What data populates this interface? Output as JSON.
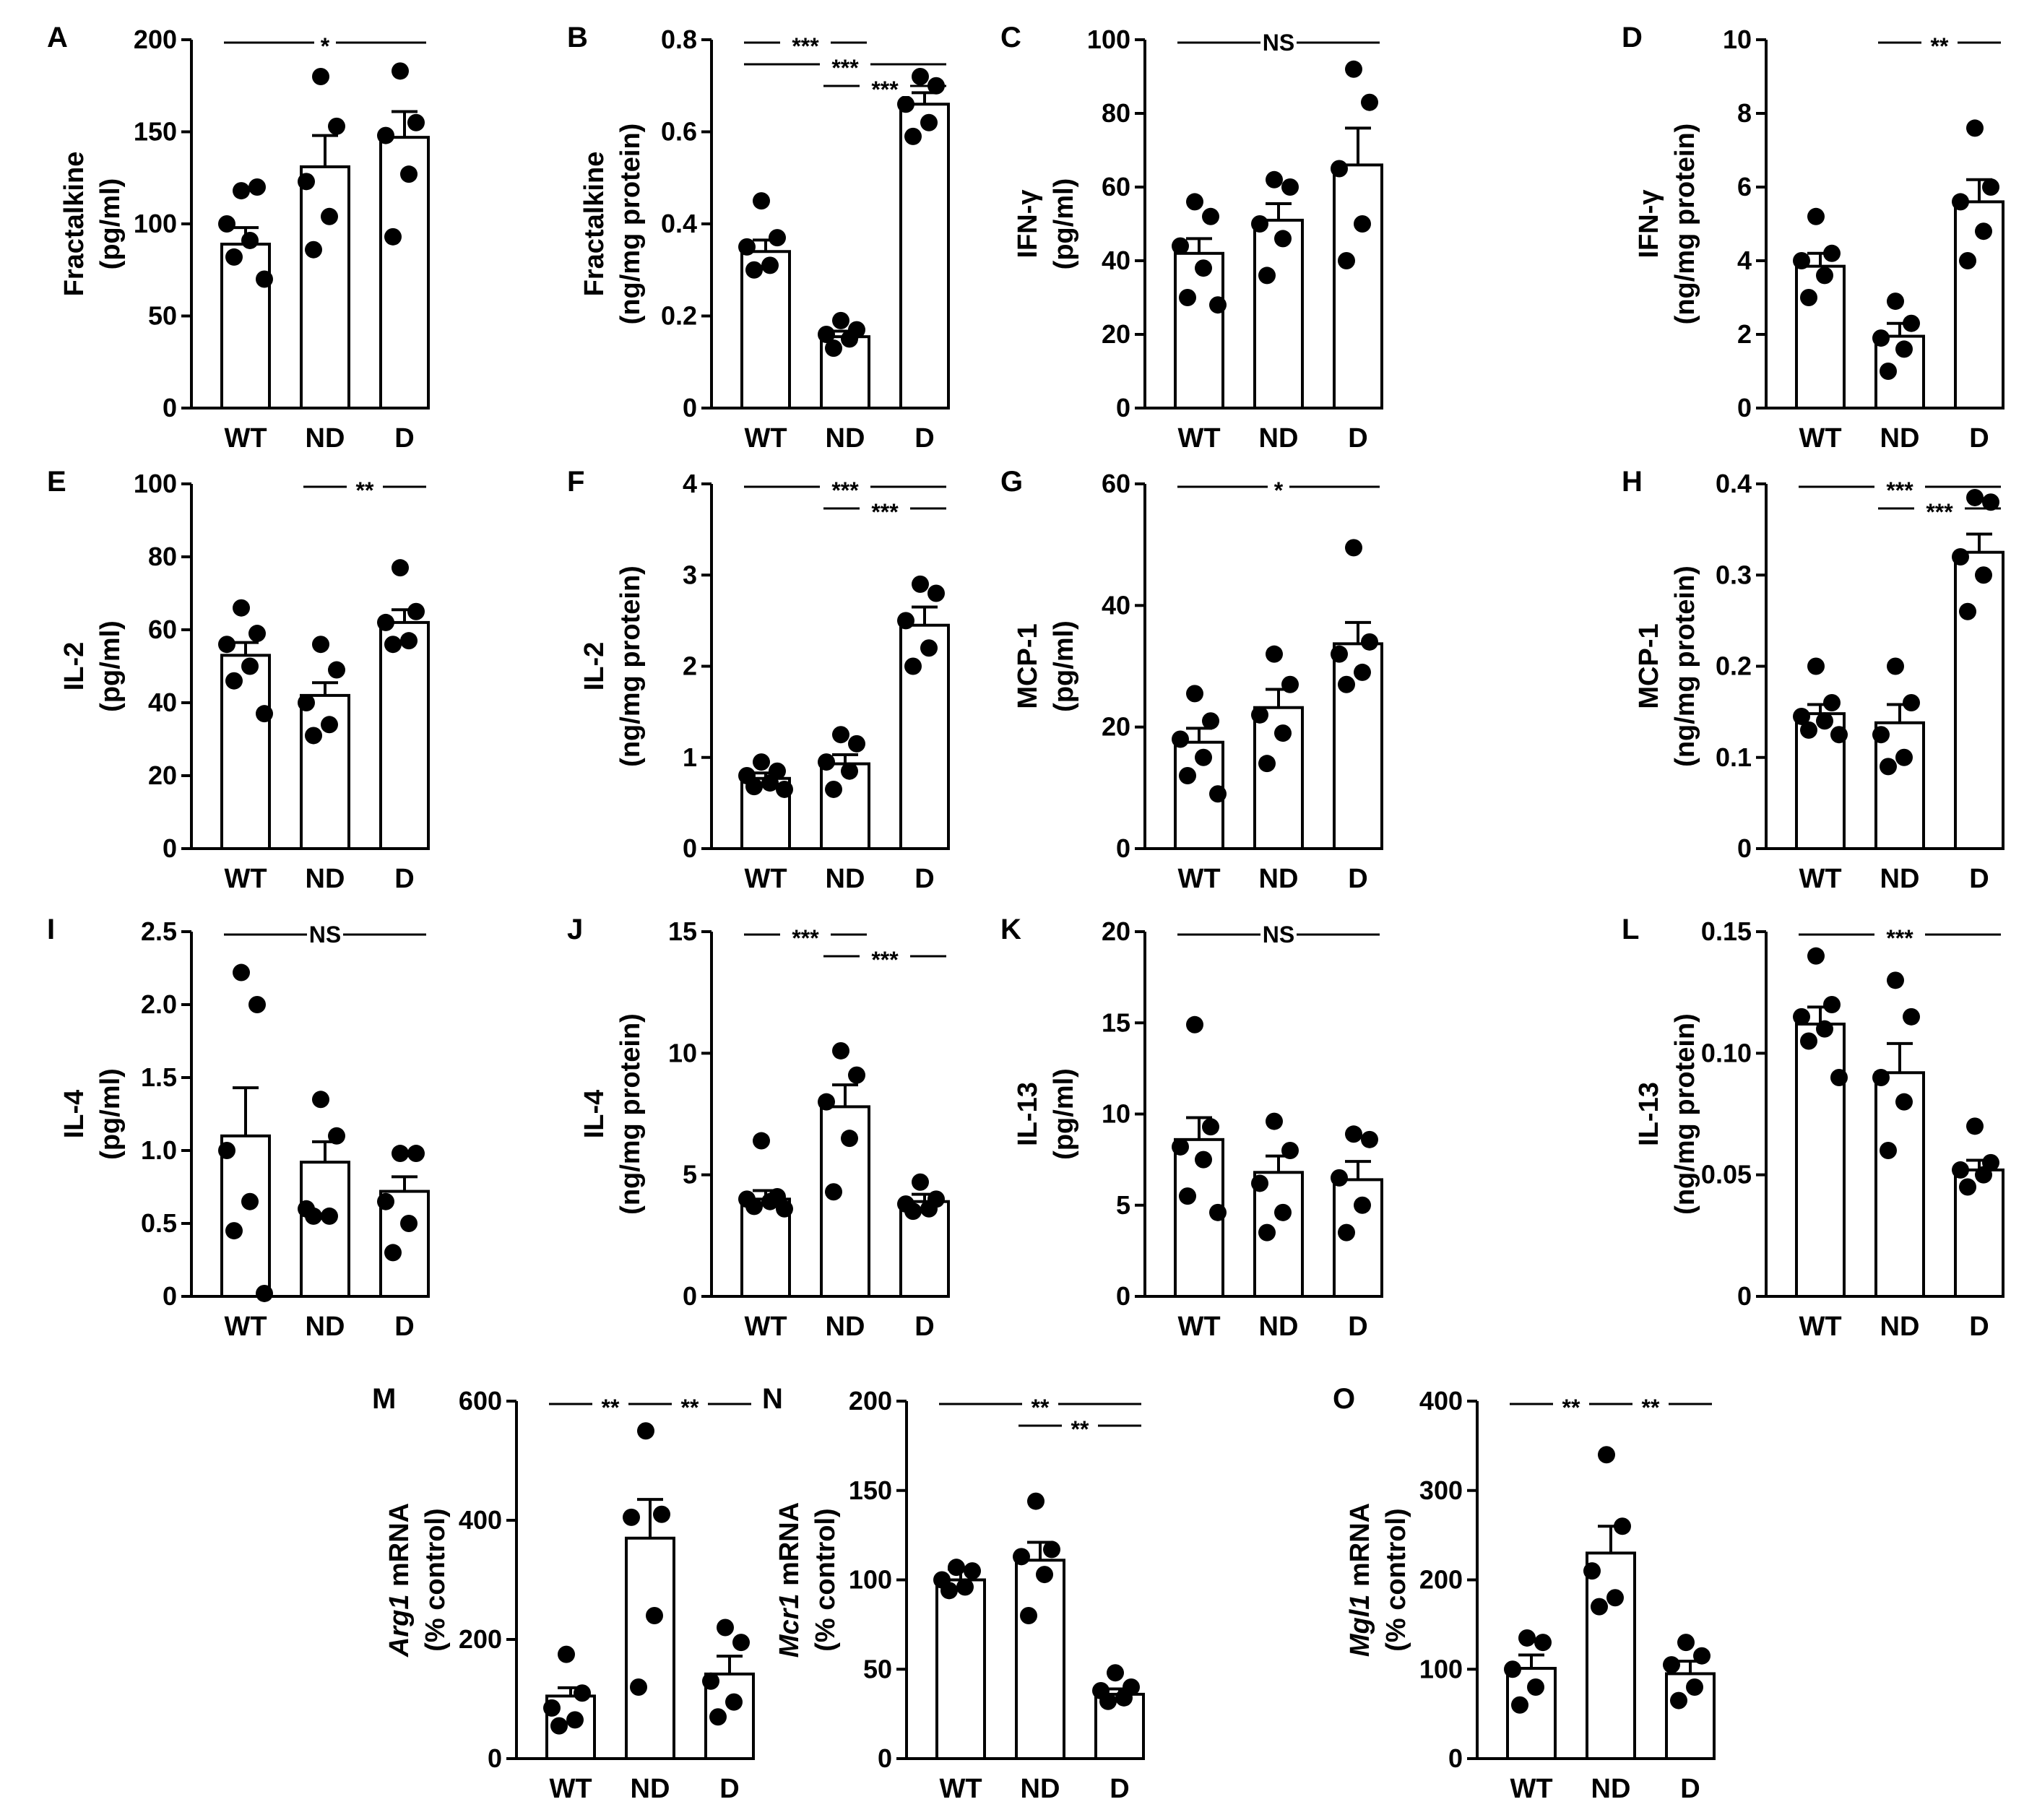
{
  "chart_data": [
    {
      "panel": "A",
      "type": "bar",
      "categories": [
        "WT",
        "ND",
        "D"
      ],
      "ylabel": [
        "Fractalkine",
        "(pg/ml)"
      ],
      "ylim": [
        0,
        200
      ],
      "yticks": [
        0,
        50,
        100,
        150,
        200
      ],
      "ytick_labels": [
        "0",
        "50",
        "100",
        "150",
        "200"
      ],
      "values": [
        89,
        131,
        147
      ],
      "errors": [
        9,
        17,
        14
      ],
      "points": [
        [
          118,
          120,
          100,
          91,
          82,
          70
        ],
        [
          180,
          153,
          123,
          104,
          86
        ],
        [
          183,
          155,
          148,
          127,
          93
        ]
      ],
      "significance": [
        {
          "from": 0,
          "to": 2,
          "label": "*",
          "level": 0
        }
      ]
    },
    {
      "panel": "B",
      "type": "bar",
      "categories": [
        "WT",
        "ND",
        "D"
      ],
      "ylabel": [
        "Fractalkine",
        "(ng/mg protein)"
      ],
      "ylim": [
        0,
        0.8
      ],
      "yticks": [
        0,
        0.2,
        0.4,
        0.6,
        0.8
      ],
      "ytick_labels": [
        "0",
        "0.2",
        "0.4",
        "0.6",
        "0.8"
      ],
      "values": [
        0.34,
        0.155,
        0.66
      ],
      "errors": [
        0.025,
        0.012,
        0.025
      ],
      "points": [
        [
          0.45,
          0.37,
          0.35,
          0.31,
          0.3
        ],
        [
          0.19,
          0.17,
          0.16,
          0.15,
          0.13
        ],
        [
          0.72,
          0.7,
          0.66,
          0.62,
          0.59
        ]
      ],
      "significance": [
        {
          "from": 0,
          "to": 1,
          "label": "***",
          "level": 0
        },
        {
          "from": 0,
          "to": 2,
          "label": "***",
          "level": 1
        },
        {
          "from": 1,
          "to": 2,
          "label": "***",
          "level": 2
        }
      ]
    },
    {
      "panel": "C",
      "type": "bar",
      "categories": [
        "WT",
        "ND",
        "D"
      ],
      "ylabel": [
        "IFN-γ",
        "(pg/ml)"
      ],
      "ylim": [
        0,
        100
      ],
      "yticks": [
        0,
        20,
        40,
        60,
        80,
        100
      ],
      "ytick_labels": [
        "0",
        "20",
        "40",
        "60",
        "80",
        "100"
      ],
      "values": [
        42,
        51,
        66
      ],
      "errors": [
        4,
        4.5,
        10
      ],
      "points": [
        [
          56,
          52,
          44,
          38,
          30,
          28
        ],
        [
          62,
          60,
          50,
          46,
          36
        ],
        [
          92,
          83,
          65,
          50,
          40
        ]
      ],
      "significance": [
        {
          "from": 0,
          "to": 2,
          "label": "NS",
          "level": 0
        }
      ]
    },
    {
      "panel": "D",
      "type": "bar",
      "categories": [
        "WT",
        "ND",
        "D"
      ],
      "ylabel": [
        "IFN-γ",
        "(ng/mg protein)"
      ],
      "ylim": [
        0,
        10
      ],
      "yticks": [
        0,
        2,
        4,
        6,
        8,
        10
      ],
      "ytick_labels": [
        "0",
        "2",
        "4",
        "6",
        "8",
        "10"
      ],
      "values": [
        3.85,
        1.95,
        5.6
      ],
      "errors": [
        0.35,
        0.35,
        0.6
      ],
      "points": [
        [
          5.2,
          4.2,
          4.0,
          3.6,
          3.0
        ],
        [
          2.9,
          2.3,
          1.9,
          1.6,
          1.0
        ],
        [
          7.6,
          6.0,
          5.6,
          4.8,
          4.0
        ]
      ],
      "significance": [
        {
          "from": 1,
          "to": 2,
          "label": "**",
          "level": 0
        }
      ]
    },
    {
      "panel": "E",
      "type": "bar",
      "categories": [
        "WT",
        "ND",
        "D"
      ],
      "ylabel": [
        "IL-2",
        "(pg/ml)"
      ],
      "ylim": [
        0,
        100
      ],
      "yticks": [
        0,
        20,
        40,
        60,
        80,
        100
      ],
      "ytick_labels": [
        "0",
        "20",
        "40",
        "60",
        "80",
        "100"
      ],
      "values": [
        53,
        42,
        62
      ],
      "errors": [
        3.5,
        3.5,
        3.5
      ],
      "points": [
        [
          66,
          59,
          56,
          50,
          46,
          37
        ],
        [
          56,
          49,
          40,
          34,
          31
        ],
        [
          77,
          65,
          62,
          57,
          56
        ]
      ],
      "significance": [
        {
          "from": 1,
          "to": 2,
          "label": "**",
          "level": 0
        }
      ]
    },
    {
      "panel": "F",
      "type": "bar",
      "categories": [
        "WT",
        "ND",
        "D"
      ],
      "ylabel": [
        "IL-2",
        "(ng/mg protein)"
      ],
      "ylim": [
        0,
        4
      ],
      "yticks": [
        0,
        1,
        2,
        3,
        4
      ],
      "ytick_labels": [
        "0",
        "1",
        "2",
        "3",
        "4"
      ],
      "values": [
        0.77,
        0.93,
        2.45
      ],
      "errors": [
        0.06,
        0.1,
        0.2
      ],
      "points": [
        [
          0.95,
          0.85,
          0.8,
          0.72,
          0.68,
          0.65
        ],
        [
          1.25,
          1.15,
          0.95,
          0.85,
          0.65
        ],
        [
          2.9,
          2.8,
          2.5,
          2.2,
          2.0
        ]
      ],
      "significance": [
        {
          "from": 0,
          "to": 2,
          "label": "***",
          "level": 0
        },
        {
          "from": 1,
          "to": 2,
          "label": "***",
          "level": 1
        }
      ]
    },
    {
      "panel": "G",
      "type": "bar",
      "categories": [
        "WT",
        "ND",
        "D"
      ],
      "ylabel": [
        "MCP-1",
        "(pg/ml)"
      ],
      "ylim": [
        0,
        60
      ],
      "yticks": [
        0,
        20,
        40,
        60
      ],
      "ytick_labels": [
        "0",
        "20",
        "40",
        "60"
      ],
      "values": [
        17.5,
        23.2,
        33.7
      ],
      "errors": [
        2.3,
        3,
        3.5
      ],
      "points": [
        [
          25.5,
          21,
          18,
          15,
          12,
          9
        ],
        [
          32,
          27,
          22,
          19,
          14
        ],
        [
          49.5,
          34,
          32,
          29,
          27
        ]
      ],
      "significance": [
        {
          "from": 0,
          "to": 2,
          "label": "*",
          "level": 0
        }
      ]
    },
    {
      "panel": "H",
      "type": "bar",
      "categories": [
        "WT",
        "ND",
        "D"
      ],
      "ylabel": [
        "MCP-1",
        "(ng/mg protein)"
      ],
      "ylim": [
        0,
        0.4
      ],
      "yticks": [
        0,
        0.1,
        0.2,
        0.3,
        0.4
      ],
      "ytick_labels": [
        "0",
        "0.1",
        "0.2",
        "0.3",
        "0.4"
      ],
      "values": [
        0.148,
        0.138,
        0.325
      ],
      "errors": [
        0.01,
        0.02,
        0.02
      ],
      "points": [
        [
          0.2,
          0.16,
          0.145,
          0.14,
          0.13,
          0.125
        ],
        [
          0.2,
          0.16,
          0.125,
          0.1,
          0.09
        ],
        [
          0.385,
          0.38,
          0.32,
          0.3,
          0.26
        ]
      ],
      "significance": [
        {
          "from": 0,
          "to": 2,
          "label": "***",
          "level": 0
        },
        {
          "from": 1,
          "to": 2,
          "label": "***",
          "level": 1
        }
      ]
    },
    {
      "panel": "I",
      "type": "bar",
      "categories": [
        "WT",
        "ND",
        "D"
      ],
      "ylabel": [
        "IL-4",
        "(pg/ml)"
      ],
      "ylim": [
        0,
        2.5
      ],
      "yticks": [
        0,
        0.5,
        1.0,
        1.5,
        2.0,
        2.5
      ],
      "ytick_labels": [
        "0",
        "0.5",
        "1.0",
        "1.5",
        "2.0",
        "2.5"
      ],
      "values": [
        1.1,
        0.92,
        0.72
      ],
      "errors": [
        0.33,
        0.14,
        0.1
      ],
      "points": [
        [
          2.22,
          2.0,
          1.0,
          0.65,
          0.45,
          0.02
        ],
        [
          1.35,
          1.1,
          0.6,
          0.55,
          0.55
        ],
        [
          0.98,
          0.98,
          0.65,
          0.5,
          0.3
        ]
      ],
      "significance": [
        {
          "from": 0,
          "to": 2,
          "label": "NS",
          "level": 0
        }
      ]
    },
    {
      "panel": "J",
      "type": "bar",
      "categories": [
        "WT",
        "ND",
        "D"
      ],
      "ylabel": [
        "IL-4",
        "(ng/mg protein)"
      ],
      "ylim": [
        0,
        15
      ],
      "yticks": [
        0,
        5,
        10,
        15
      ],
      "ytick_labels": [
        "0",
        "5",
        "10",
        "15"
      ],
      "values": [
        4.0,
        7.8,
        3.9
      ],
      "errors": [
        0.35,
        0.9,
        0.3
      ],
      "points": [
        [
          6.4,
          4.1,
          4.0,
          3.9,
          3.7,
          3.6
        ],
        [
          10.1,
          9.1,
          8.0,
          6.5,
          4.3
        ],
        [
          4.7,
          4.0,
          3.8,
          3.6,
          3.5
        ]
      ],
      "significance": [
        {
          "from": 0,
          "to": 1,
          "label": "***",
          "level": 0
        },
        {
          "from": 1,
          "to": 2,
          "label": "***",
          "level": 1
        }
      ]
    },
    {
      "panel": "K",
      "type": "bar",
      "categories": [
        "WT",
        "ND",
        "D"
      ],
      "ylabel": [
        "IL-13",
        "(pg/ml)"
      ],
      "ylim": [
        0,
        20
      ],
      "yticks": [
        0,
        5,
        10,
        15,
        20
      ],
      "ytick_labels": [
        "0",
        "5",
        "10",
        "15",
        "20"
      ],
      "values": [
        8.6,
        6.8,
        6.4
      ],
      "errors": [
        1.2,
        0.9,
        1.0
      ],
      "points": [
        [
          14.9,
          9.3,
          8.2,
          7.5,
          5.5,
          4.6
        ],
        [
          9.6,
          8.0,
          6.2,
          4.6,
          3.5
        ],
        [
          8.9,
          8.6,
          6.5,
          5.0,
          3.5
        ]
      ],
      "significance": [
        {
          "from": 0,
          "to": 2,
          "label": "NS",
          "level": 0
        }
      ]
    },
    {
      "panel": "L",
      "type": "bar",
      "categories": [
        "WT",
        "ND",
        "D"
      ],
      "ylabel": [
        "IL-13",
        "(ng/mg protein)"
      ],
      "ylim": [
        0,
        0.15
      ],
      "yticks": [
        0,
        0.05,
        0.1,
        0.15
      ],
      "ytick_labels": [
        "0",
        "0.05",
        "0.10",
        "0.15"
      ],
      "values": [
        0.112,
        0.092,
        0.052
      ],
      "errors": [
        0.007,
        0.012,
        0.004
      ],
      "points": [
        [
          0.14,
          0.12,
          0.115,
          0.11,
          0.105,
          0.09
        ],
        [
          0.13,
          0.115,
          0.09,
          0.08,
          0.06
        ],
        [
          0.07,
          0.055,
          0.052,
          0.05,
          0.045
        ]
      ],
      "significance": [
        {
          "from": 0,
          "to": 2,
          "label": "***",
          "level": 0
        }
      ]
    },
    {
      "panel": "M",
      "type": "bar",
      "categories": [
        "WT",
        "ND",
        "D"
      ],
      "ylabel": [
        "Arg1 mRNA",
        "(% control)"
      ],
      "ylabel_italic": "Arg1",
      "ylabel_rest": " mRNA",
      "ylim": [
        0,
        600
      ],
      "yticks": [
        0,
        200,
        400,
        600
      ],
      "ytick_labels": [
        "0",
        "200",
        "400",
        "600"
      ],
      "values": [
        105,
        370,
        142
      ],
      "errors": [
        14,
        65,
        30
      ],
      "points": [
        [
          175,
          110,
          85,
          65,
          55
        ],
        [
          550,
          410,
          405,
          240,
          120
        ],
        [
          220,
          195,
          130,
          95,
          70
        ]
      ],
      "significance": [
        {
          "from": 0,
          "to": 1,
          "label": "**",
          "level": 0
        },
        {
          "from": 1,
          "to": 2,
          "label": "**",
          "level": 0
        }
      ]
    },
    {
      "panel": "N",
      "type": "bar",
      "categories": [
        "WT",
        "ND",
        "D"
      ],
      "ylabel": [
        "Mcr1 mRNA",
        "(% control)"
      ],
      "ylabel_italic": "Mcr1",
      "ylabel_rest": " mRNA",
      "ylim": [
        0,
        200
      ],
      "yticks": [
        0,
        50,
        100,
        150,
        200
      ],
      "ytick_labels": [
        "0",
        "50",
        "100",
        "150",
        "200"
      ],
      "values": [
        100,
        111,
        36
      ],
      "errors": [
        6,
        10,
        3
      ],
      "points": [
        [
          107,
          105,
          100,
          96,
          94
        ],
        [
          144,
          117,
          113,
          103,
          80
        ],
        [
          48,
          40,
          38,
          34,
          32
        ]
      ],
      "significance": [
        {
          "from": 0,
          "to": 2,
          "label": "**",
          "level": 0
        },
        {
          "from": 1,
          "to": 2,
          "label": "**",
          "level": 1
        }
      ]
    },
    {
      "panel": "O",
      "type": "bar",
      "categories": [
        "WT",
        "ND",
        "D"
      ],
      "ylabel": [
        "Mgl1 mRNA",
        "(% control)"
      ],
      "ylabel_italic": "Mgl1",
      "ylabel_rest": " mRNA",
      "ylim": [
        0,
        400
      ],
      "yticks": [
        0,
        100,
        200,
        300,
        400
      ],
      "ytick_labels": [
        "0",
        "100",
        "200",
        "300",
        "400"
      ],
      "values": [
        101,
        230,
        95
      ],
      "errors": [
        15,
        30,
        14
      ],
      "points": [
        [
          135,
          130,
          100,
          80,
          60
        ],
        [
          340,
          260,
          210,
          180,
          170
        ],
        [
          130,
          115,
          105,
          80,
          65
        ]
      ],
      "significance": [
        {
          "from": 0,
          "to": 1,
          "label": "**",
          "level": 0
        },
        {
          "from": 1,
          "to": 2,
          "label": "**",
          "level": 0
        }
      ]
    }
  ]
}
